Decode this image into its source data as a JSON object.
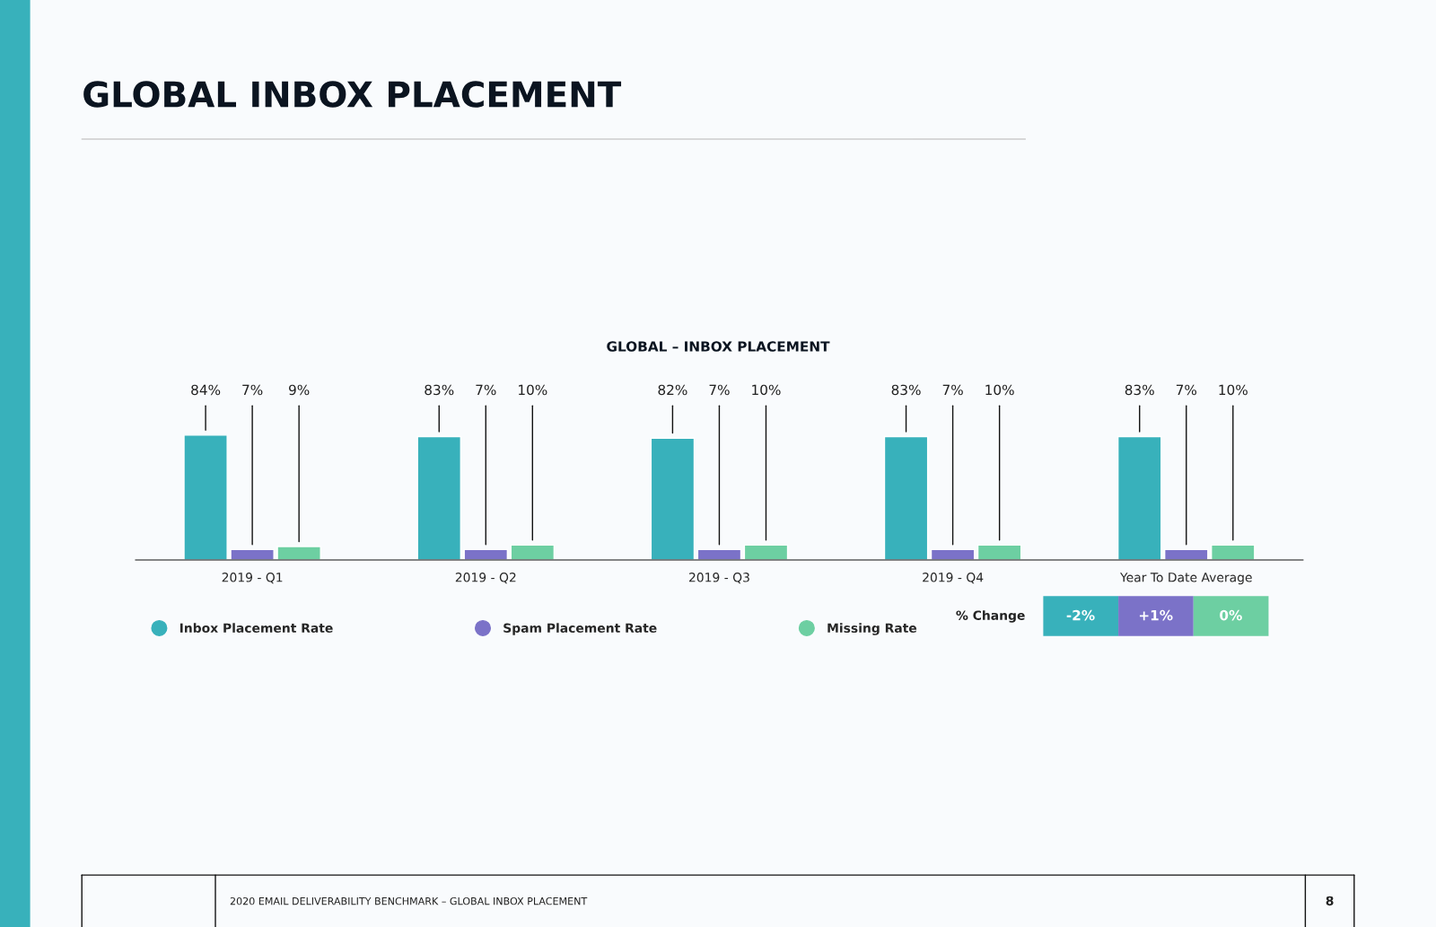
{
  "chart_data": {
    "type": "bar",
    "title": "GLOBAL INBOX PLACEMENT",
    "subtitle": "GLOBAL – INBOX PLACEMENT",
    "categories": [
      "2019 - Q1",
      "2019 - Q2",
      "2019 - Q3",
      "2019 - Q4",
      "Year To Date Average"
    ],
    "series": [
      {
        "name": "Inbox Placement Rate",
        "color": "#38b1bb",
        "values": [
          84,
          83,
          82,
          83,
          83
        ],
        "value_labels": [
          "84%",
          "83%",
          "82%",
          "83%",
          "83%"
        ]
      },
      {
        "name": "Spam Placement Rate",
        "color": "#7b72c8",
        "values": [
          7,
          7,
          7,
          7,
          7
        ],
        "value_labels": [
          "7%",
          "7%",
          "7%",
          "7%",
          "7%"
        ]
      },
      {
        "name": "Missing Rate",
        "color": "#6dcfa2",
        "values": [
          9,
          10,
          10,
          10,
          10
        ],
        "value_labels": [
          "9%",
          "10%",
          "10%",
          "10%",
          "10%"
        ]
      }
    ],
    "legend": "bottom",
    "grid": false,
    "marker": "circle",
    "annotations": [
      "% Change",
      "-2%",
      "+1%",
      "0%",
      "2020 EMAIL DELIVERABILITY BENCHMARK – GLOBAL INBOX PLACEMENT",
      "8"
    ]
  }
}
